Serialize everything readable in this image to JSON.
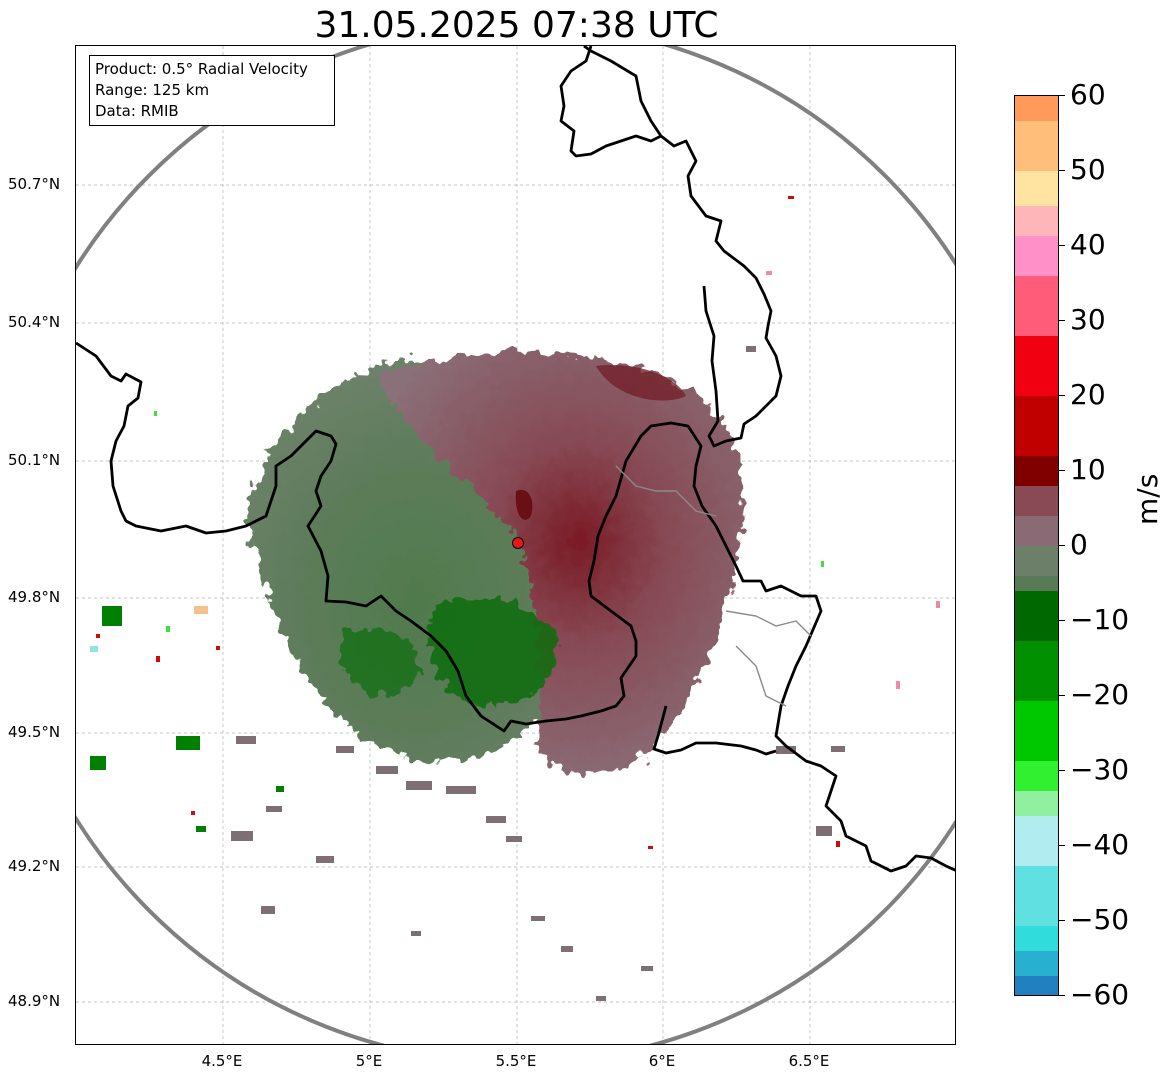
{
  "title": "31.05.2025 07:38 UTC",
  "info": {
    "product": "Product: 0.5° Radial Velocity",
    "range": "Range: 125 km",
    "source": "Data: RMIB"
  },
  "axes": {
    "lat_labels": [
      "50.7°N",
      "50.4°N",
      "50.1°N",
      "49.8°N",
      "49.5°N",
      "49.2°N",
      "48.9°N"
    ],
    "lon_labels": [
      "4.5°E",
      "5°E",
      "5.5°E",
      "6°E",
      "6.5°E"
    ]
  },
  "colorbar": {
    "unit": "m/s",
    "ticks": [
      "60",
      "50",
      "40",
      "30",
      "20",
      "10",
      "0",
      "−10",
      "−20",
      "−30",
      "−40",
      "−50",
      "−60"
    ],
    "min": -60,
    "max": 60
  },
  "colors": {
    "range_ring": "#808080",
    "radar_site": "#e8151a",
    "border": "#000000",
    "grid": "#b0b0b0",
    "receding": "#8b2c3a",
    "neutral": "#7a7275",
    "approaching": "#5d7b5a",
    "approaching_strong": "#007000"
  }
}
